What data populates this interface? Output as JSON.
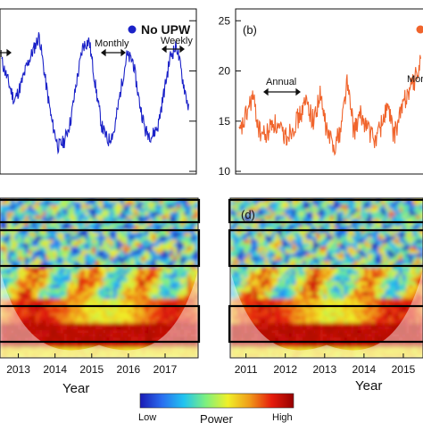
{
  "colors": {
    "series_a": "#1b22c8",
    "series_b": "#f0642c",
    "colormap": [
      "#1a1ab4",
      "#2a6ef0",
      "#21c4f0",
      "#7ef07e",
      "#f0f028",
      "#f09a1a",
      "#e61c0c",
      "#960000"
    ]
  },
  "chart_data": [
    {
      "id": "panel-a",
      "type": "line",
      "legend": "No UPW",
      "legend_marker_color": "#1b22c8",
      "annotations": [
        "l",
        "Monthly",
        "Weekly"
      ],
      "x": [
        2011.8,
        2012.0,
        2012.2,
        2012.4,
        2012.6,
        2012.8,
        2013.0,
        2013.2,
        2013.4,
        2013.6,
        2013.8,
        2014.0,
        2014.2,
        2014.4,
        2014.6,
        2014.8,
        2015.0,
        2015.2,
        2015.4,
        2015.6,
        2015.8,
        2016.0,
        2016.2,
        2016.4,
        2016.6,
        2016.8,
        2017.0,
        2017.2,
        2017.4,
        2017.6,
        2017.8
      ],
      "values": [
        21,
        19,
        17,
        18.5,
        20.5,
        22,
        23.5,
        19,
        15,
        12.5,
        13,
        15,
        19,
        22.5,
        23,
        18.5,
        14.5,
        13,
        14,
        18,
        21.5,
        21,
        17,
        14,
        13.5,
        14.5,
        18,
        21.5,
        22.5,
        19,
        16
      ],
      "ylim": [
        10,
        26
      ],
      "grid": false
    },
    {
      "id": "panel-b",
      "type": "line",
      "panel_label": "(b)",
      "legend_marker_color": "#f0642c",
      "annotations": [
        "Annual",
        "Mor"
      ],
      "yticks": [
        "25",
        "20",
        "15",
        "10"
      ],
      "x": [
        2010.3,
        2010.5,
        2010.7,
        2010.9,
        2011.1,
        2011.3,
        2011.5,
        2011.7,
        2011.9,
        2012.1,
        2012.3,
        2012.5,
        2012.7,
        2012.9,
        2013.1,
        2013.3,
        2013.5,
        2013.7,
        2013.9,
        2014.1,
        2014.3,
        2014.5,
        2014.7,
        2014.9,
        2015.1,
        2015.3,
        2015.5,
        2015.7
      ],
      "values": [
        13.5,
        15.5,
        17.5,
        14,
        13.5,
        15,
        14,
        13.5,
        14.5,
        15.5,
        17,
        15,
        17.5,
        14,
        12.5,
        14,
        19,
        14,
        15.5,
        14.5,
        13,
        14.5,
        16.5,
        13.5,
        16,
        18,
        19,
        21
      ],
      "ylim": [
        10,
        26
      ],
      "grid": false
    },
    {
      "id": "panel-c",
      "type": "heatmap",
      "xticks": [
        "2013",
        "2014",
        "2015",
        "2016",
        "2017"
      ],
      "xtick_values": [
        2013,
        2014,
        2015,
        2016,
        2017
      ],
      "xlim": [
        2012.5,
        2017.9
      ],
      "xlabel": "Year"
    },
    {
      "id": "panel-d",
      "type": "heatmap",
      "panel_label": "(d)",
      "xticks": [
        "2011",
        "2012",
        "2013",
        "2014",
        "2015"
      ],
      "xtick_values": [
        2011,
        2012,
        2013,
        2014,
        2015
      ],
      "xlim": [
        2010.6,
        2015.5
      ],
      "xlabel": "Year"
    }
  ],
  "colorbar": {
    "low_label": "Low",
    "title": "Power",
    "high_label": "High"
  }
}
